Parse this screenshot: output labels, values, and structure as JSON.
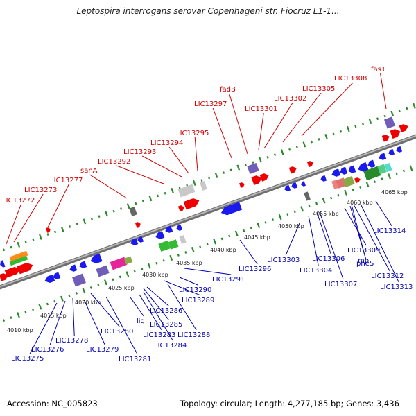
{
  "title": "Leptospira interrogans serovar Copenhageni str. Fiocruz L1-1...",
  "footer": {
    "accession": "Accession: NC_005823",
    "stats": "Topology: circular; Length: 4,277,185 bp; Genes: 3,436"
  },
  "colors": {
    "backbone": "#8c8c8c",
    "tick": "#2a8a2a",
    "top_label": "#cc0000",
    "bottom_label": "#0000aa",
    "forward": "#ee0000",
    "reverse": "#1a1aee"
  },
  "kbp_labels": [
    "4010 kbp",
    "4015 kbp",
    "4020 kbp",
    "4025 kbp",
    "4030 kbp",
    "4035 kbp",
    "4040 kbp",
    "4045 kbp",
    "4050 kbp",
    "4055 kbp",
    "4060 kbp",
    "4065 kbp"
  ],
  "top_genes": [
    "LIC13272",
    "LIC13273",
    "LIC13277",
    "sanA",
    "LIC13292",
    "LIC13293",
    "LIC13294",
    "LIC13295",
    "LIC13297",
    "fadB",
    "LIC13301",
    "LIC13302",
    "LIC13305",
    "LIC13308",
    "fas1"
  ],
  "bottom_genes": [
    "LIC13275",
    "LIC13276",
    "LIC13278",
    "LIC13279",
    "LIC13280",
    "LIC13281",
    "lig",
    "LIC13283",
    "LIC13284",
    "LIC13285",
    "LIC13286",
    "LIC13288",
    "LIC13289",
    "LIC13290",
    "LIC13291",
    "LIC13296",
    "LIC13303",
    "LIC13304",
    "LIC13306",
    "LIC13307",
    "LIC13309",
    "mpl",
    "pheS",
    "LIC13312",
    "LIC13313",
    "LIC13314"
  ]
}
